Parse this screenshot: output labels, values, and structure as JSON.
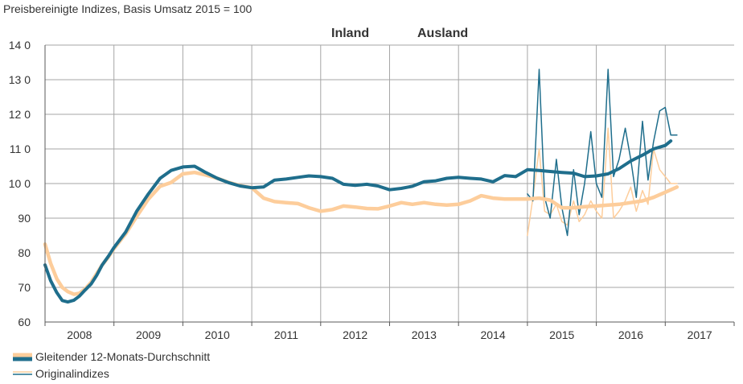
{
  "chart_data": {
    "type": "line",
    "title": "Preisbereinigte Indizes, Basis Umsatz 2015 = 100",
    "xlabel": "",
    "ylabel": "",
    "ylim": [
      60,
      140
    ],
    "yticks": [
      60,
      70,
      80,
      90,
      100,
      110,
      120,
      130,
      140
    ],
    "ytick_labels": [
      "60",
      "70",
      "80",
      "90",
      "10 0",
      "11 0",
      "12 0",
      "13 0",
      "14 0"
    ],
    "xlim": [
      2008,
      2018
    ],
    "year_labels": [
      "2008",
      "2009",
      "2010",
      "2011",
      "2012",
      "2013",
      "2014",
      "2015",
      "2016",
      "2017"
    ],
    "series_labels": {
      "inland": "Inland",
      "ausland": "Ausland"
    },
    "legend": {
      "moving": "Gleitender 12-Monats-Durchschnitt",
      "original": "Originalindizes"
    },
    "colors": {
      "inland": "#fdcd9b",
      "ausland": "#1f6e8c",
      "grid": "#a6a6a6",
      "axis": "#595959"
    },
    "series": [
      {
        "name": "Inland gleitend",
        "x": [
          2008.0,
          2008.08,
          2008.17,
          2008.25,
          2008.33,
          2008.42,
          2008.5,
          2008.58,
          2008.67,
          2008.75,
          2008.83,
          2008.92,
          2009.0,
          2009.17,
          2009.33,
          2009.5,
          2009.67,
          2009.83,
          2010.0,
          2010.17,
          2010.33,
          2010.5,
          2010.67,
          2010.83,
          2011.0,
          2011.17,
          2011.33,
          2011.5,
          2011.67,
          2011.83,
          2012.0,
          2012.17,
          2012.33,
          2012.5,
          2012.67,
          2012.83,
          2013.0,
          2013.17,
          2013.33,
          2013.5,
          2013.67,
          2013.83,
          2014.0,
          2014.17,
          2014.33,
          2014.5,
          2014.67,
          2014.83,
          2015.0,
          2015.17,
          2015.33,
          2015.5,
          2015.67,
          2015.83,
          2016.0,
          2016.17,
          2016.33,
          2016.5,
          2016.67,
          2016.83,
          2017.0,
          2017.17
        ],
        "values": [
          82.5,
          77.0,
          72.5,
          70.0,
          68.8,
          68.0,
          68.3,
          69.5,
          71.5,
          74.0,
          76.5,
          78.8,
          81.2,
          85.5,
          90.5,
          95.5,
          99.2,
          100.3,
          102.8,
          103.2,
          102.5,
          101.5,
          100.3,
          99.4,
          98.8,
          95.8,
          94.8,
          94.5,
          94.2,
          93.0,
          92.0,
          92.5,
          93.5,
          93.2,
          92.8,
          92.7,
          93.5,
          94.5,
          94.0,
          94.5,
          94.0,
          93.8,
          94.0,
          95.0,
          96.5,
          95.8,
          95.5,
          95.5,
          95.5,
          95.8,
          95.2,
          93.0,
          93.0,
          93.3,
          93.5,
          93.8,
          94.0,
          94.5,
          95.0,
          96.0,
          97.5,
          99.0
        ]
      },
      {
        "name": "Ausland gleitend",
        "x": [
          2008.0,
          2008.08,
          2008.17,
          2008.25,
          2008.33,
          2008.42,
          2008.5,
          2008.58,
          2008.67,
          2008.75,
          2008.83,
          2008.92,
          2009.0,
          2009.17,
          2009.33,
          2009.5,
          2009.67,
          2009.83,
          2010.0,
          2010.17,
          2010.33,
          2010.5,
          2010.67,
          2010.83,
          2011.0,
          2011.17,
          2011.33,
          2011.5,
          2011.67,
          2011.83,
          2012.0,
          2012.17,
          2012.33,
          2012.5,
          2012.67,
          2012.83,
          2013.0,
          2013.17,
          2013.33,
          2013.5,
          2013.67,
          2013.83,
          2014.0,
          2014.17,
          2014.33,
          2014.5,
          2014.67,
          2014.83,
          2015.0,
          2015.17,
          2015.33,
          2015.5,
          2015.67,
          2015.83,
          2016.0,
          2016.17,
          2016.33,
          2016.5,
          2016.67,
          2016.83,
          2017.0,
          2017.08
        ],
        "values": [
          76.5,
          72.0,
          68.5,
          66.2,
          65.8,
          66.3,
          67.5,
          69.2,
          71.0,
          73.5,
          76.5,
          79.0,
          81.5,
          86.0,
          92.0,
          97.0,
          101.5,
          103.8,
          104.8,
          105.0,
          103.2,
          101.5,
          100.2,
          99.3,
          98.8,
          99.0,
          101.0,
          101.3,
          101.8,
          102.2,
          102.0,
          101.5,
          99.8,
          99.5,
          99.8,
          99.3,
          98.2,
          98.6,
          99.2,
          100.5,
          100.8,
          101.5,
          101.8,
          101.5,
          101.3,
          100.5,
          102.3,
          102.0,
          104.0,
          103.8,
          103.5,
          103.2,
          103.0,
          102.0,
          102.2,
          102.8,
          104.3,
          106.5,
          108.2,
          110.0,
          111.0,
          112.3
        ]
      },
      {
        "name": "Inland original",
        "x": [
          2015.0,
          2015.08,
          2015.17,
          2015.25,
          2015.33,
          2015.42,
          2015.5,
          2015.58,
          2015.67,
          2015.75,
          2015.83,
          2015.92,
          2016.0,
          2016.08,
          2016.17,
          2016.25,
          2016.33,
          2016.42,
          2016.5,
          2016.58,
          2016.67,
          2016.75,
          2016.83,
          2016.92,
          2017.0,
          2017.08,
          2017.17
        ],
        "values": [
          85,
          96,
          110,
          92,
          91,
          94,
          89,
          88,
          95,
          89,
          91,
          95,
          92,
          90,
          116,
          90,
          92,
          95,
          99,
          92,
          98,
          94,
          110,
          104,
          102,
          100,
          100
        ]
      },
      {
        "name": "Ausland original",
        "x": [
          2015.0,
          2015.08,
          2015.17,
          2015.25,
          2015.33,
          2015.42,
          2015.5,
          2015.58,
          2015.67,
          2015.75,
          2015.83,
          2015.92,
          2016.0,
          2016.08,
          2016.17,
          2016.25,
          2016.33,
          2016.42,
          2016.5,
          2016.58,
          2016.67,
          2016.75,
          2016.83,
          2016.92,
          2017.0,
          2017.08,
          2017.17
        ],
        "values": [
          97,
          95,
          133,
          96,
          90,
          107,
          93,
          85,
          104,
          91,
          100,
          115,
          100,
          96,
          133,
          102,
          107,
          116,
          107,
          96,
          118,
          101,
          112,
          121,
          122,
          114,
          114
        ]
      }
    ]
  }
}
